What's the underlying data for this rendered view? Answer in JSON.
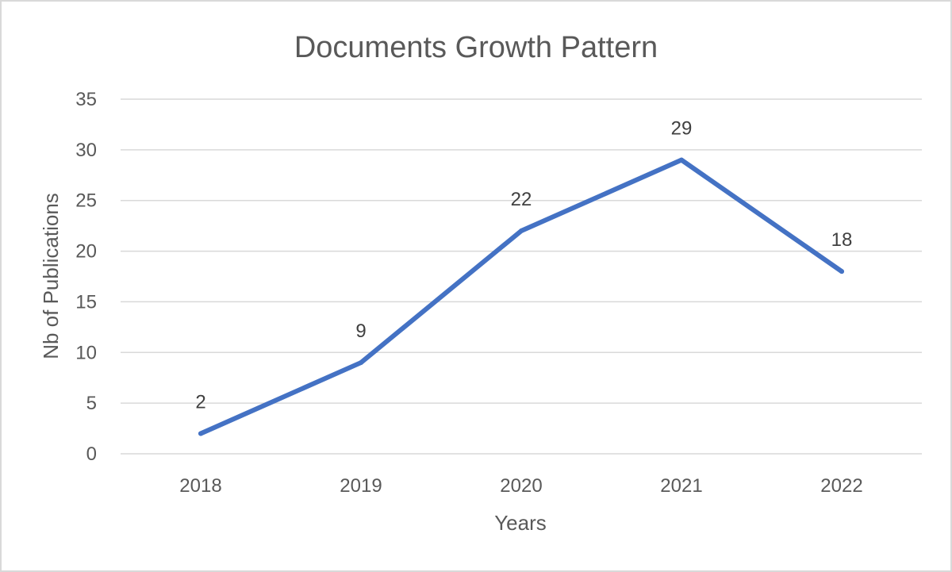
{
  "chart_data": {
    "type": "line",
    "title": "Documents Growth Pattern",
    "xlabel": "Years",
    "ylabel": "Nb of Publications",
    "categories": [
      "2018",
      "2019",
      "2020",
      "2021",
      "2022"
    ],
    "series": [
      {
        "values": [
          2,
          9,
          22,
          29,
          18
        ],
        "color": "#4472c4"
      }
    ],
    "ylim": [
      0,
      35
    ],
    "yticks": [
      "0",
      "5",
      "10",
      "15",
      "20",
      "25",
      "30",
      "35"
    ],
    "data_labels": [
      "2",
      "9",
      "22",
      "29",
      "18"
    ],
    "grid": true,
    "legend": "none"
  }
}
